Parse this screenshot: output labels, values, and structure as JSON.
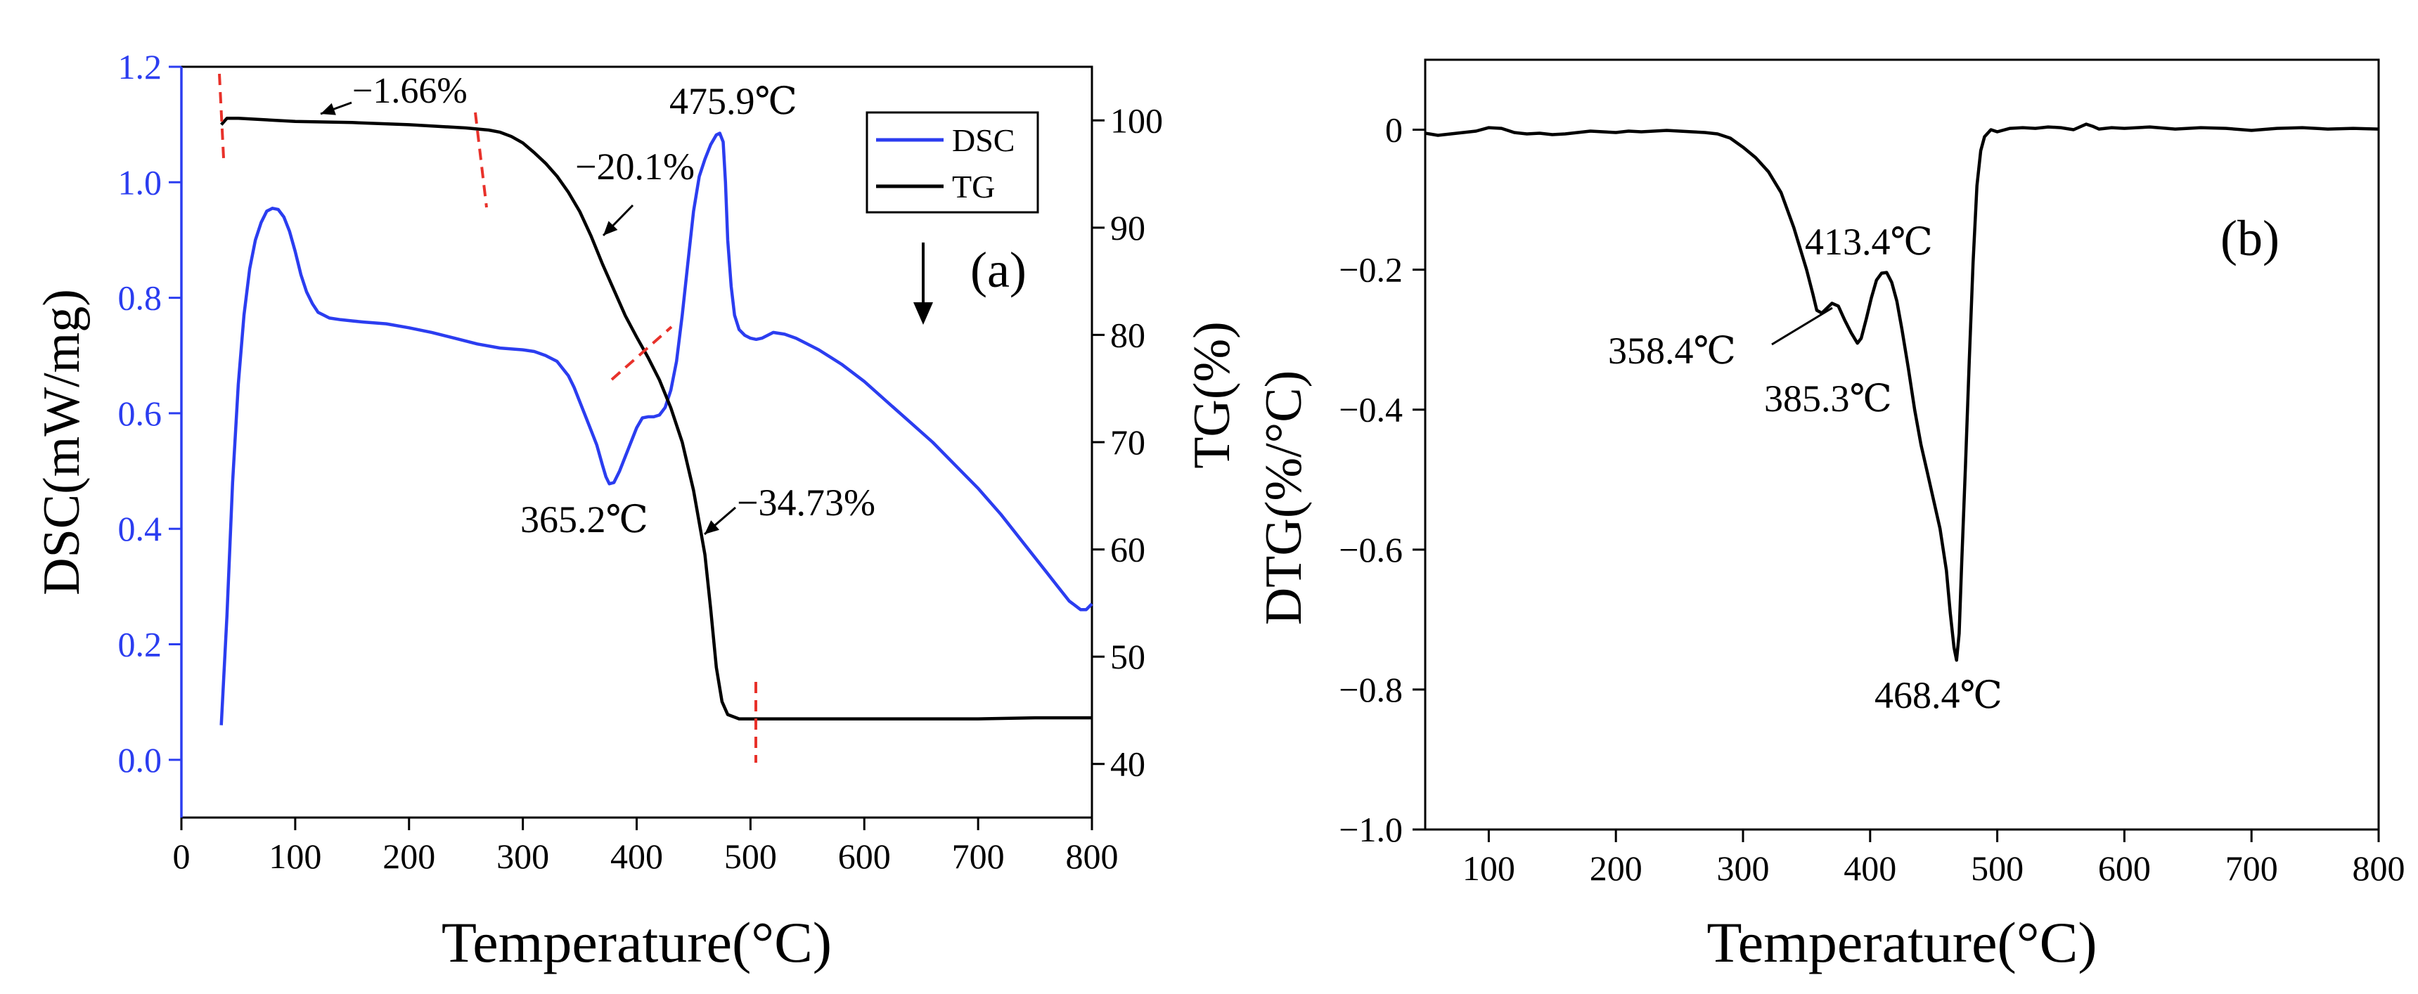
{
  "colors": {
    "dsc": "#2b3df0",
    "tg": "#000000",
    "dtg": "#000000",
    "onset_marker": "#e8312a",
    "axis": "#000000"
  },
  "chart_data": [
    {
      "panel_label": "(a)",
      "type": "line",
      "xlabel": "Temperature(°C)",
      "ylabel_left": "DSC(mW/mg)",
      "ylabel_right": "TG(%)",
      "xlim": [
        0,
        800
      ],
      "ylim_left": [
        -0.1,
        1.2
      ],
      "ylim_right": [
        35,
        105
      ],
      "xticks": [
        0,
        100,
        200,
        300,
        400,
        500,
        600,
        700,
        800
      ],
      "yticks_left": [
        0.0,
        0.2,
        0.4,
        0.6,
        0.8,
        1.0,
        1.2
      ],
      "ytick_labels_left": [
        "0.0",
        "0.2",
        "0.4",
        "0.6",
        "0.8",
        "1.0",
        "1.2"
      ],
      "yticks_right": [
        40,
        50,
        60,
        70,
        80,
        90,
        100
      ],
      "legend": {
        "placement": "top-right",
        "entries": [
          {
            "name": "DSC",
            "color": "#2b3df0"
          },
          {
            "name": "TG",
            "color": "#000000"
          }
        ]
      },
      "series": [
        {
          "name": "DSC",
          "axis": "left",
          "color": "#2b3df0",
          "x": [
            35,
            40,
            45,
            50,
            55,
            60,
            65,
            70,
            75,
            80,
            85,
            90,
            95,
            100,
            105,
            110,
            115,
            120,
            125,
            130,
            140,
            150,
            160,
            180,
            200,
            220,
            240,
            260,
            280,
            300,
            310,
            320,
            330,
            340,
            345,
            350,
            355,
            360,
            365,
            370,
            373,
            376,
            380,
            385,
            390,
            395,
            400,
            405,
            410,
            415,
            420,
            425,
            430,
            435,
            440,
            445,
            450,
            455,
            460,
            465,
            470,
            473,
            476,
            478,
            480,
            483,
            486,
            490,
            495,
            500,
            505,
            510,
            515,
            520,
            530,
            540,
            560,
            580,
            600,
            620,
            640,
            660,
            680,
            700,
            720,
            740,
            760,
            770,
            780,
            790,
            795,
            800
          ],
          "y": [
            0.06,
            0.25,
            0.48,
            0.65,
            0.77,
            0.85,
            0.9,
            0.93,
            0.95,
            0.955,
            0.953,
            0.94,
            0.915,
            0.88,
            0.84,
            0.81,
            0.79,
            0.775,
            0.77,
            0.765,
            0.762,
            0.76,
            0.758,
            0.755,
            0.748,
            0.74,
            0.73,
            0.72,
            0.713,
            0.71,
            0.707,
            0.7,
            0.69,
            0.665,
            0.645,
            0.62,
            0.595,
            0.57,
            0.545,
            0.51,
            0.49,
            0.478,
            0.48,
            0.5,
            0.525,
            0.55,
            0.575,
            0.592,
            0.594,
            0.594,
            0.597,
            0.61,
            0.64,
            0.69,
            0.77,
            0.86,
            0.95,
            1.01,
            1.04,
            1.065,
            1.082,
            1.085,
            1.07,
            1.0,
            0.9,
            0.82,
            0.77,
            0.745,
            0.735,
            0.73,
            0.728,
            0.73,
            0.735,
            0.74,
            0.737,
            0.73,
            0.71,
            0.685,
            0.655,
            0.62,
            0.585,
            0.55,
            0.51,
            0.47,
            0.425,
            0.375,
            0.325,
            0.3,
            0.275,
            0.26,
            0.26,
            0.27
          ]
        },
        {
          "name": "TG",
          "axis": "right",
          "color": "#000000",
          "x": [
            35,
            40,
            50,
            100,
            150,
            200,
            250,
            270,
            280,
            290,
            300,
            310,
            320,
            330,
            340,
            350,
            360,
            370,
            380,
            390,
            400,
            410,
            420,
            430,
            440,
            450,
            460,
            465,
            470,
            475,
            480,
            490,
            500,
            550,
            600,
            650,
            700,
            750,
            800
          ],
          "y": [
            99.6,
            100.2,
            100.2,
            99.9,
            99.8,
            99.6,
            99.3,
            99.1,
            98.9,
            98.5,
            97.9,
            97.0,
            96.0,
            94.8,
            93.3,
            91.5,
            89.2,
            86.6,
            84.2,
            81.8,
            79.8,
            77.9,
            75.8,
            73.2,
            70.0,
            65.5,
            59.5,
            54.5,
            49.0,
            45.8,
            44.6,
            44.2,
            44.2,
            44.2,
            44.2,
            44.2,
            44.2,
            44.3,
            44.3
          ]
        }
      ],
      "annotations": [
        {
          "text": "−1.66%"
        },
        {
          "text": "475.9℃"
        },
        {
          "text": "−20.1%"
        },
        {
          "text": "365.2℃"
        },
        {
          "text": "−34.73%"
        }
      ]
    },
    {
      "panel_label": "(b)",
      "type": "line",
      "xlabel": "Temperature(°C)",
      "ylabel": "DTG(%/°C)",
      "xlim": [
        50,
        800
      ],
      "ylim": [
        -1.0,
        0.1
      ],
      "xticks": [
        100,
        200,
        300,
        400,
        500,
        600,
        700,
        800
      ],
      "yticks": [
        0.0,
        -0.2,
        -0.4,
        -0.6,
        -0.8,
        -1.0
      ],
      "ytick_labels": [
        "0",
        "−0.2",
        "−0.4",
        "−0.6",
        "−0.8",
        "−1.0"
      ],
      "series": [
        {
          "name": "DTG",
          "color": "#000000",
          "x": [
            50,
            60,
            70,
            80,
            90,
            100,
            110,
            120,
            130,
            140,
            150,
            160,
            170,
            180,
            190,
            200,
            210,
            220,
            230,
            240,
            250,
            260,
            270,
            280,
            290,
            300,
            310,
            320,
            330,
            340,
            350,
            355,
            358,
            362,
            366,
            370,
            375,
            380,
            385,
            390,
            393,
            397,
            401,
            405,
            409,
            413,
            417,
            421,
            425,
            430,
            435,
            440,
            445,
            450,
            455,
            460,
            463,
            466,
            468,
            470,
            472,
            475,
            478,
            481,
            484,
            487,
            490,
            495,
            500,
            510,
            520,
            530,
            540,
            550,
            560,
            570,
            575,
            580,
            590,
            600,
            620,
            640,
            660,
            680,
            700,
            720,
            740,
            760,
            780,
            800
          ],
          "y": [
            -0.005,
            -0.008,
            -0.006,
            -0.004,
            -0.002,
            0.003,
            0.002,
            -0.004,
            -0.006,
            -0.005,
            -0.007,
            -0.006,
            -0.004,
            -0.002,
            -0.003,
            -0.004,
            -0.002,
            -0.003,
            -0.002,
            -0.001,
            -0.002,
            -0.003,
            -0.004,
            -0.006,
            -0.012,
            -0.025,
            -0.04,
            -0.06,
            -0.09,
            -0.14,
            -0.2,
            -0.235,
            -0.258,
            -0.262,
            -0.255,
            -0.248,
            -0.252,
            -0.272,
            -0.29,
            -0.305,
            -0.298,
            -0.27,
            -0.24,
            -0.215,
            -0.205,
            -0.204,
            -0.218,
            -0.245,
            -0.285,
            -0.34,
            -0.4,
            -0.45,
            -0.49,
            -0.53,
            -0.57,
            -0.63,
            -0.69,
            -0.74,
            -0.758,
            -0.72,
            -0.62,
            -0.48,
            -0.33,
            -0.19,
            -0.08,
            -0.03,
            -0.01,
            0.0,
            -0.003,
            0.002,
            0.003,
            0.002,
            0.004,
            0.003,
            0.0,
            0.008,
            0.005,
            0.001,
            0.003,
            0.002,
            0.004,
            0.001,
            0.003,
            0.002,
            -0.001,
            0.002,
            0.003,
            0.001,
            0.002,
            0.001
          ]
        }
      ],
      "annotations": [
        {
          "text": "413.4℃"
        },
        {
          "text": "358.4℃"
        },
        {
          "text": "385.3℃"
        },
        {
          "text": "468.4℃"
        }
      ]
    }
  ]
}
